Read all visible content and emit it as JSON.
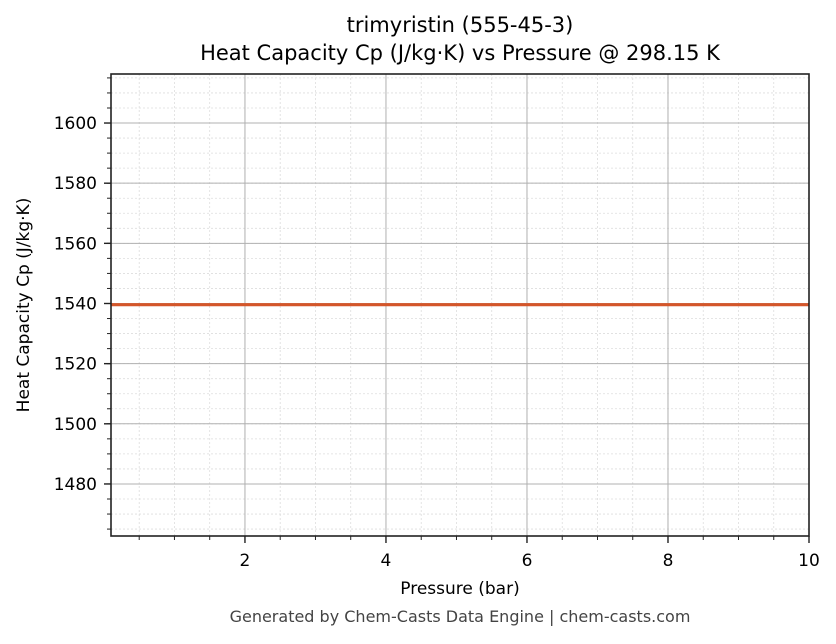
{
  "chart_data": {
    "type": "line",
    "title": "trimyristin (555-45-3)",
    "subtitle": "Heat Capacity Cp (J/kg·K) vs Pressure @ 298.15 K",
    "xlabel": "Pressure (bar)",
    "ylabel": "Heat Capacity Cp (J/kg·K)",
    "xlim": [
      0.1,
      10
    ],
    "ylim": [
      1462.7,
      1616.3
    ],
    "x_ticks": [
      2,
      4,
      6,
      8,
      10
    ],
    "x_tick_labels": [
      "2",
      "4",
      "6",
      "8",
      "10"
    ],
    "y_ticks": [
      1480,
      1500,
      1520,
      1540,
      1560,
      1580,
      1600
    ],
    "y_tick_labels": [
      "1480",
      "1500",
      "1520",
      "1540",
      "1560",
      "1580",
      "1600"
    ],
    "grid": {
      "major": true,
      "minor": true
    },
    "series": [
      {
        "name": "Cp",
        "color": "#d4562a",
        "x": [
          0.1,
          10
        ],
        "values": [
          1539.6,
          1539.6
        ]
      }
    ]
  },
  "footer": "Generated by Chem-Casts Data Engine | chem-casts.com"
}
